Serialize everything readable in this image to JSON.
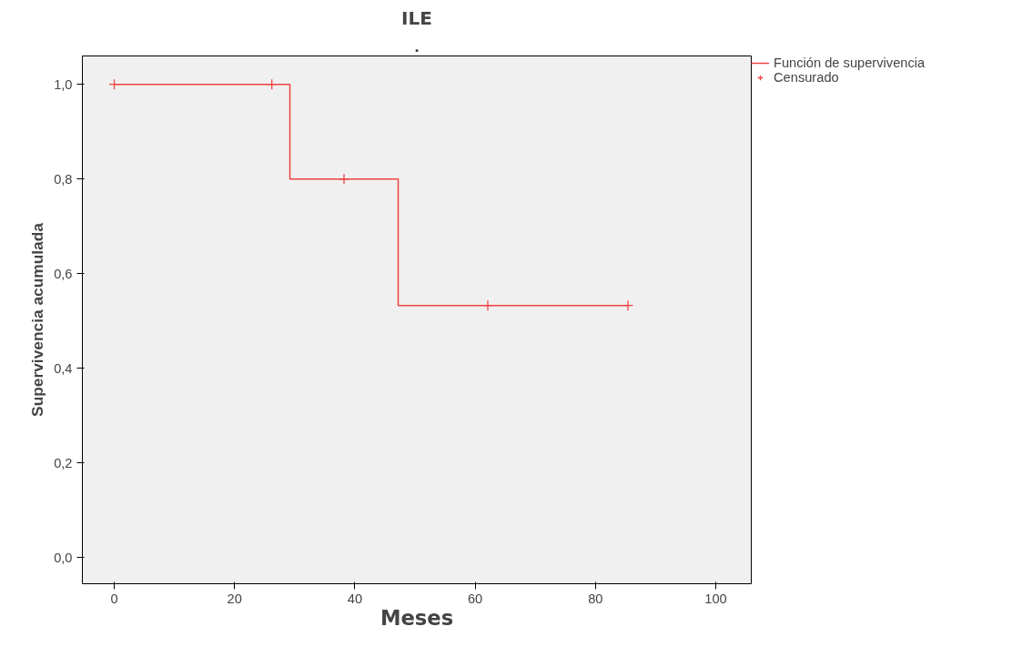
{
  "chart_data": {
    "type": "step",
    "title": "ILE",
    "subtitle": ".",
    "xlabel": "Meses",
    "ylabel": "Supervivencia acumulada",
    "xlim": [
      -5.3,
      105.9
    ],
    "ylim": [
      -0.055,
      1.06
    ],
    "xticks": [
      0,
      20,
      40,
      60,
      80,
      100
    ],
    "yticks": [
      {
        "value": 0,
        "label": "0,0"
      },
      {
        "value": 0.2,
        "label": "0,2"
      },
      {
        "value": 0.4,
        "label": "0,4"
      },
      {
        "value": 0.6,
        "label": "0,6"
      },
      {
        "value": 0.8,
        "label": "0,8"
      },
      {
        "value": 1,
        "label": "1,0"
      }
    ],
    "grid": false,
    "legend": "top right",
    "series": [
      {
        "name": "Función de supervivencia",
        "color": "#ee4444",
        "marker": "none",
        "x": [
          0,
          29.2,
          47.2,
          85.4
        ],
        "values": [
          1,
          0.8,
          0.533,
          0.533
        ]
      },
      {
        "name": "Censurado",
        "type": "scatter",
        "color": "#ee4444",
        "marker": "cross",
        "x": [
          0,
          26.2,
          38.2,
          62.1,
          85.4
        ],
        "values": [
          1,
          1,
          0.8,
          0.533,
          0.533
        ]
      }
    ]
  }
}
